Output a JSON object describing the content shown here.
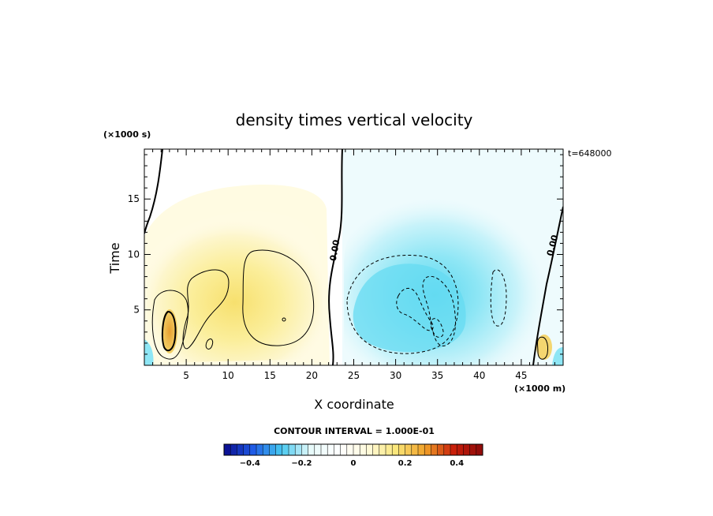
{
  "chart_data": {
    "type": "heatmap",
    "title": "density times vertical velocity",
    "xlabel": "X coordinate",
    "ylabel": "Time",
    "x_unit": "(×1000 m)",
    "y_unit": "(×1000 s)",
    "time_stamp": "t=648000",
    "xlim": [
      0,
      50
    ],
    "ylim": [
      0,
      19.5
    ],
    "x_ticks": [
      5,
      10,
      15,
      20,
      25,
      30,
      35,
      40,
      45
    ],
    "y_ticks": [
      5,
      10,
      15
    ],
    "contour_interval_text": "CONTOUR INTERVAL = 1.000E-01",
    "contour_interval": 0.1,
    "zero_contour_labels": [
      "0.00",
      "0.00"
    ],
    "colorbar": {
      "range": [
        -0.5,
        0.5
      ],
      "tick_values": [
        -0.4,
        -0.2,
        0,
        0.2,
        0.4
      ],
      "tick_labels": [
        "−0.4",
        "−0.2",
        "0",
        "0.2",
        "0.4"
      ],
      "stops": [
        "#0a0a8c",
        "#1e5ae6",
        "#46c8f0",
        "#e6fafa",
        "#ffffff",
        "#fffadc",
        "#fae678",
        "#f0a028",
        "#c81e0a",
        "#8c0a0a"
      ]
    },
    "regions": [
      {
        "sign": "positive",
        "x_range": [
          0,
          22
        ],
        "peak_value": 0.25,
        "peak_x": 3,
        "peak_y": 3
      },
      {
        "sign": "negative",
        "x_range": [
          23,
          45
        ],
        "peak_value": -0.2,
        "peak_x": 32,
        "peak_y": 5
      },
      {
        "sign": "positive",
        "x_range": [
          46,
          50
        ],
        "peak_value": 0.15,
        "peak_x": 48,
        "peak_y": 2
      }
    ]
  }
}
